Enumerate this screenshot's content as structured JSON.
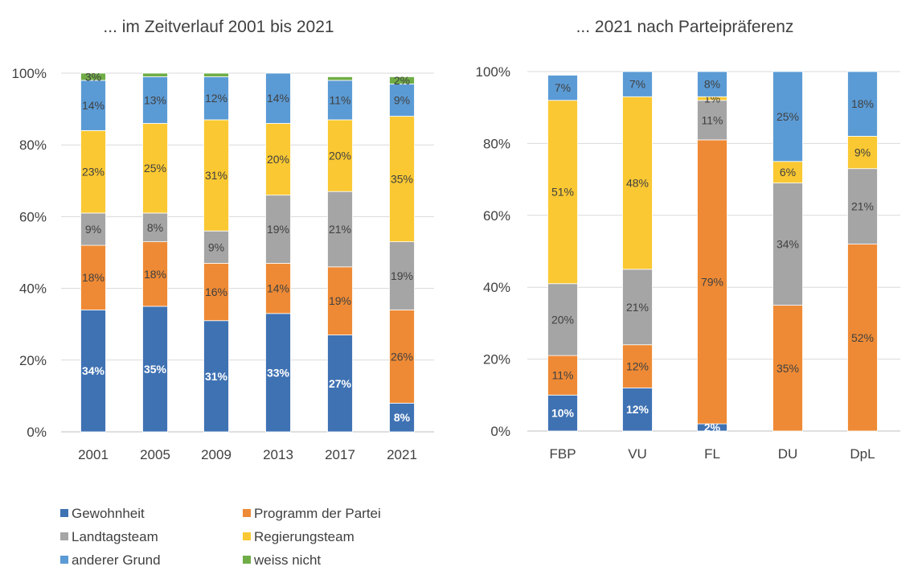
{
  "colors": {
    "Gewohnheit": "#3f72b3",
    "Programm der Partei": "#ee8a35",
    "Landtagsteam": "#a5a5a5",
    "Regierungsteam": "#fac832",
    "anderer Grund": "#5b9bd5",
    "weiss nicht": "#70ad47"
  },
  "legend": {
    "items": [
      "Gewohnheit",
      "Programm der Partei",
      "Landtagsteam",
      "Regierungsteam",
      "anderer Grund",
      "weiss nicht"
    ]
  },
  "chart_data": [
    {
      "type": "bar",
      "stacked": "percent",
      "title": "... im Zeitverlauf 2001 bis 2021",
      "categories": [
        "2001",
        "2005",
        "2009",
        "2013",
        "2017",
        "2021"
      ],
      "yticks": [
        "0%",
        "20%",
        "40%",
        "60%",
        "80%",
        "100%"
      ],
      "ylim": [
        0,
        100
      ],
      "grid": true,
      "series": [
        {
          "name": "Gewohnheit",
          "values": [
            34,
            35,
            31,
            33,
            27,
            8
          ]
        },
        {
          "name": "Programm der Partei",
          "values": [
            18,
            18,
            16,
            14,
            19,
            26
          ]
        },
        {
          "name": "Landtagsteam",
          "values": [
            9,
            8,
            9,
            19,
            21,
            19
          ]
        },
        {
          "name": "Regierungsteam",
          "values": [
            23,
            25,
            31,
            20,
            20,
            35
          ]
        },
        {
          "name": "anderer Grund",
          "values": [
            14,
            13,
            12,
            14,
            11,
            9
          ]
        },
        {
          "name": "weiss nicht",
          "values": [
            3,
            1,
            1,
            0,
            1,
            2
          ]
        }
      ],
      "labels": [
        [
          "34%",
          "35%",
          "31%",
          "33%",
          "27%",
          "8%"
        ],
        [
          "18%",
          "18%",
          "16%",
          "14%",
          "19%",
          "26%"
        ],
        [
          "9%",
          "8%",
          "9%",
          "19%",
          "21%",
          "19%"
        ],
        [
          "23%",
          "25%",
          "31%",
          "20%",
          "20%",
          "35%"
        ],
        [
          "14%",
          "13%",
          "12%",
          "14%",
          "11%",
          "9%"
        ],
        [
          "3%",
          "",
          "",
          "",
          "",
          "2%"
        ]
      ]
    },
    {
      "type": "bar",
      "stacked": "percent",
      "title": "... 2021 nach Parteipräferenz",
      "categories": [
        "FBP",
        "VU",
        "FL",
        "DU",
        "DpL"
      ],
      "yticks": [
        "0%",
        "20%",
        "40%",
        "60%",
        "80%",
        "100%"
      ],
      "ylim": [
        0,
        100
      ],
      "grid": true,
      "series": [
        {
          "name": "Gewohnheit",
          "values": [
            10,
            12,
            2,
            0,
            0
          ]
        },
        {
          "name": "Programm der Partei",
          "values": [
            11,
            12,
            79,
            35,
            52
          ]
        },
        {
          "name": "Landtagsteam",
          "values": [
            20,
            21,
            11,
            34,
            21
          ]
        },
        {
          "name": "Regierungsteam",
          "values": [
            51,
            48,
            1,
            6,
            9
          ]
        },
        {
          "name": "anderer Grund",
          "values": [
            7,
            7,
            8,
            25,
            18
          ]
        },
        {
          "name": "weiss nicht",
          "values": [
            0,
            0,
            0,
            0,
            0
          ]
        }
      ],
      "labels": [
        [
          "10%",
          "12%",
          "2%",
          "",
          ""
        ],
        [
          "11%",
          "12%",
          "79%",
          "35%",
          "52%"
        ],
        [
          "20%",
          "21%",
          "11%",
          "34%",
          "21%"
        ],
        [
          "51%",
          "48%",
          "1%",
          "6%",
          "9%"
        ],
        [
          "7%",
          "7%",
          "8%",
          "25%",
          "18%"
        ],
        [
          "",
          "",
          "",
          "",
          ""
        ]
      ]
    }
  ]
}
